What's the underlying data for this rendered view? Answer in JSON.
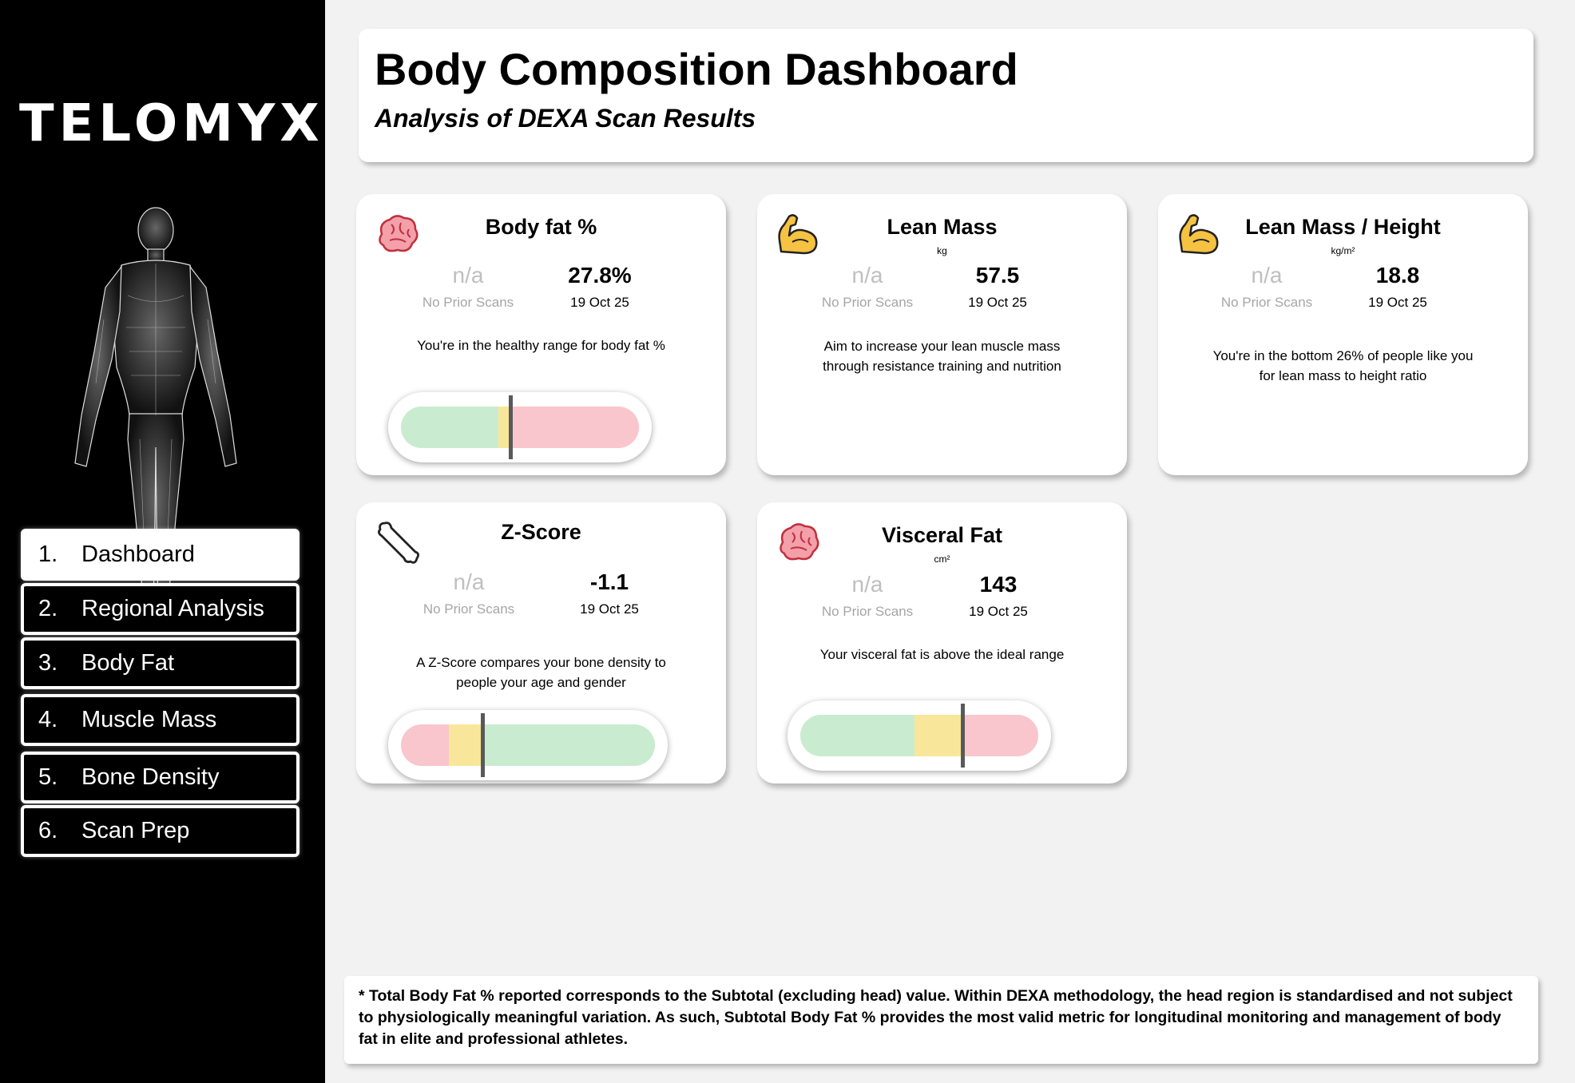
{
  "sidebar": {
    "logo": "TELOMYX",
    "nav": [
      {
        "num": "1.",
        "label": "Dashboard",
        "active": true
      },
      {
        "num": "2.",
        "label": "Regional Analysis",
        "active": false
      },
      {
        "num": "3.",
        "label": "Body Fat",
        "active": false
      },
      {
        "num": "4.",
        "label": "Muscle Mass",
        "active": false
      },
      {
        "num": "5.",
        "label": "Bone Density",
        "active": false
      },
      {
        "num": "6.",
        "label": "Scan Prep",
        "active": false
      }
    ]
  },
  "header": {
    "title": "Body Composition Dashboard",
    "subtitle": "Analysis of DEXA Scan Results"
  },
  "cards": {
    "body_fat": {
      "icon": "brain-icon",
      "title": "Body fat %",
      "prev_value": "n/a",
      "prev_label": "No Prior Scans",
      "value": "27.8%",
      "date": "19 Oct 25",
      "message": "You're in the healthy range for body fat %",
      "gauge": {
        "segments": [
          [
            "#c9ecd0",
            0.41
          ],
          [
            "#f8e79a",
            0.05
          ],
          [
            "#f9c6cd",
            0.54
          ]
        ],
        "marker": 0.46
      }
    },
    "lean_mass": {
      "icon": "flexed-bicep-icon",
      "title": "Lean Mass",
      "unit": "kg",
      "prev_value": "n/a",
      "prev_label": "No Prior Scans",
      "value": "57.5",
      "date": "19 Oct 25",
      "message": "Aim to increase your lean muscle mass through resistance training and nutrition"
    },
    "lean_mass_height": {
      "icon": "flexed-bicep-icon",
      "title": "Lean Mass / Height",
      "unit": "kg/m²",
      "prev_value": "n/a",
      "prev_label": "No Prior Scans",
      "value": "18.8",
      "date": "19 Oct 25",
      "message": "You're in the bottom 26% of people like you for lean mass to height ratio"
    },
    "z_score": {
      "icon": "bone-icon",
      "title": "Z-Score",
      "prev_value": "n/a",
      "prev_label": "No Prior Scans",
      "value": "-1.1",
      "date": "19 Oct 25",
      "message": "A Z-Score compares your bone density to people your age and gender",
      "gauge": {
        "segments": [
          [
            "#f9c6cd",
            0.19
          ],
          [
            "#f8e79a",
            0.13
          ],
          [
            "#c9ecd0",
            0.68
          ]
        ],
        "marker": 0.32
      }
    },
    "visceral_fat": {
      "icon": "brain-icon",
      "title": "Visceral Fat",
      "unit": "cm²",
      "prev_value": "n/a",
      "prev_label": "No Prior Scans",
      "value": "143",
      "date": "19 Oct 25",
      "message": "Your visceral fat is above the ideal range",
      "gauge": {
        "segments": [
          [
            "#c9ecd0",
            0.48
          ],
          [
            "#f8e79a",
            0.2
          ],
          [
            "#f9c6cd",
            0.32
          ]
        ],
        "marker": 0.68
      }
    }
  },
  "footnote": "* Total Body Fat % reported corresponds to the Subtotal (excluding head) value. Within DEXA methodology, the head region is standardised and not subject to physiologically meaningful variation. As such, Subtotal Body Fat % provides the most valid metric for longitudinal monitoring and management of body fat in elite and professional athletes."
}
